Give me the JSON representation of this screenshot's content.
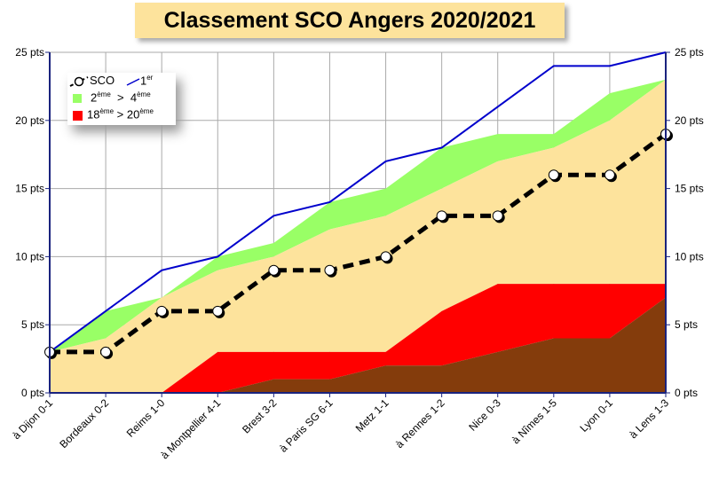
{
  "title": "Classement SCO Angers 2020/2021",
  "chart_data": {
    "type": "area",
    "title": "Classement SCO Angers 2020/2021",
    "categories": [
      "à Dijon 0-1",
      "Bordeaux 0-2",
      "Reims 1-0",
      "à Montpellier 4-1",
      "Brest 3-2",
      "à Paris SG 6-1",
      "Metz 1-1",
      "à Rennes 1-2",
      "Nice 0-3",
      "à Nîmes 1-5",
      "Lyon 0-1",
      "à Lens 1-3"
    ],
    "y_ticks": [
      "0 pts",
      "5 pts",
      "10 pts",
      "15 pts",
      "20 pts",
      "25 pts"
    ],
    "ylim": [
      0,
      25
    ],
    "grid": true,
    "legend_position": "top-left",
    "series": [
      {
        "name": "SCO",
        "type": "line-dashed-markers",
        "color": "#000000",
        "values": [
          3,
          3,
          6,
          6,
          9,
          9,
          10,
          13,
          13,
          16,
          16,
          19
        ]
      },
      {
        "name": "1er",
        "type": "line",
        "color": "#0000cc",
        "values": [
          3,
          6,
          9,
          10,
          13,
          14,
          17,
          18,
          21,
          24,
          24,
          25
        ]
      },
      {
        "name": "2ème",
        "type": "band-top",
        "color": "#99ff66",
        "values": [
          3,
          6,
          7,
          10,
          11,
          14,
          15,
          18,
          19,
          19,
          22,
          23
        ]
      },
      {
        "name": "4ème",
        "type": "band-bottom",
        "color": "#fde39c",
        "values": [
          3,
          4,
          7,
          9,
          10,
          12,
          13,
          15,
          17,
          18,
          20,
          23
        ]
      },
      {
        "name": "18ème",
        "type": "band-top",
        "color": "#ff0000",
        "values": [
          0,
          0,
          0,
          3,
          3,
          3,
          3,
          6,
          8,
          8,
          8,
          8
        ]
      },
      {
        "name": "20ème",
        "type": "band-bottom",
        "color": "#843c0c",
        "values": [
          0,
          0,
          0,
          0,
          1,
          1,
          2,
          2,
          3,
          4,
          4,
          7
        ]
      }
    ],
    "legend": {
      "sco": "SCO",
      "first": "1",
      "first_sup": "er",
      "top_band": {
        "from": "2",
        "from_sup": "ème",
        "sep": ">",
        "to": "4",
        "to_sup": "ème"
      },
      "bottom_band": {
        "from": "18",
        "from_sup": "ème",
        "sep": ">",
        "to": "20",
        "to_sup": "ème"
      }
    }
  }
}
